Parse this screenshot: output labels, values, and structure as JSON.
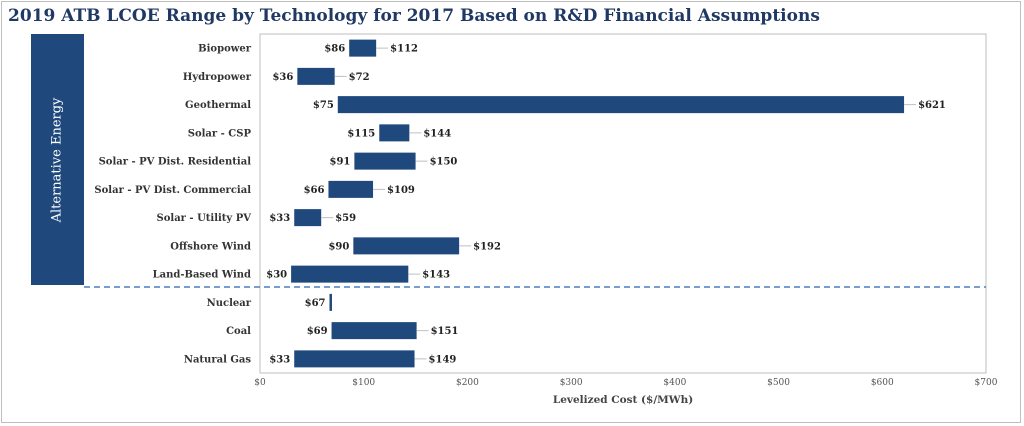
{
  "title": "2019 ATB LCOE Range by Technology for 2017 Based on R&D Financial Assumptions",
  "group_label": "Alternative Energy",
  "colors": {
    "bar": "#1f487c",
    "band": "#1f487c",
    "divider": "#4a7fc1",
    "title": "#1f3864"
  },
  "chart_data": {
    "type": "bar",
    "orientation": "horizontal-range",
    "title": "2019 ATB LCOE Range by Technology for 2017 Based on R&D Financial Assumptions",
    "xlabel": "Levelized Cost ($/MWh)",
    "ylabel": "",
    "xlim": [
      0,
      700
    ],
    "xticks": [
      "$0",
      "$100",
      "$200",
      "$300",
      "$400",
      "$500",
      "$600",
      "$700"
    ],
    "grid": false,
    "categories": [
      "Biopower",
      "Hydropower",
      "Geothermal",
      "Solar - CSP",
      "Solar - PV Dist. Residential",
      "Solar - PV Dist. Commercial",
      "Solar - Utility PV",
      "Offshore Wind",
      "Land-Based Wind",
      "Nuclear",
      "Coal",
      "Natural Gas"
    ],
    "low": [
      86,
      36,
      75,
      115,
      91,
      66,
      33,
      90,
      30,
      67,
      69,
      33
    ],
    "high": [
      112,
      72,
      621,
      144,
      150,
      109,
      59,
      192,
      143,
      67,
      151,
      149
    ],
    "low_labels": [
      "$86",
      "$36",
      "$75",
      "$115",
      "$91",
      "$66",
      "$33",
      "$90",
      "$30",
      "$67",
      "$69",
      "$33"
    ],
    "high_labels": [
      "$112",
      "$72",
      "$621",
      "$144",
      "$150",
      "$109",
      "$59",
      "$192",
      "$143",
      "",
      "$151",
      "$149"
    ],
    "groups": [
      {
        "label": "Alternative Energy",
        "categories": [
          "Biopower",
          "Hydropower",
          "Geothermal",
          "Solar - CSP",
          "Solar - PV Dist. Residential",
          "Solar - PV Dist. Commercial",
          "Solar - Utility PV",
          "Offshore Wind",
          "Land-Based Wind"
        ]
      },
      {
        "label": "",
        "categories": [
          "Nuclear",
          "Coal",
          "Natural Gas"
        ]
      }
    ]
  }
}
